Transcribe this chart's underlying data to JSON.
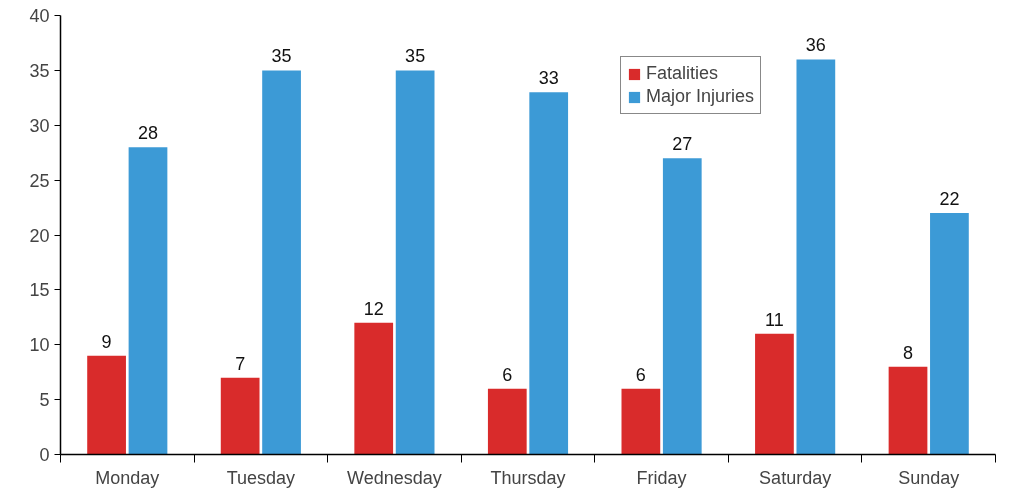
{
  "chart_data": {
    "type": "bar",
    "categories": [
      "Monday",
      "Tuesday",
      "Wednesday",
      "Thursday",
      "Friday",
      "Saturday",
      "Sunday"
    ],
    "series": [
      {
        "name": "Fatalities",
        "color": "#d92b2b",
        "values": [
          9,
          7,
          12,
          6,
          6,
          11,
          8
        ]
      },
      {
        "name": "Major Injuries",
        "color": "#3c9ad6",
        "values": [
          28,
          35,
          35,
          33,
          27,
          36,
          22
        ]
      }
    ],
    "ylim": [
      0,
      40
    ],
    "yticks": [
      0,
      5,
      10,
      15,
      20,
      25,
      30,
      35,
      40
    ],
    "grid": false,
    "legend": "top right",
    "data_labels": true
  }
}
